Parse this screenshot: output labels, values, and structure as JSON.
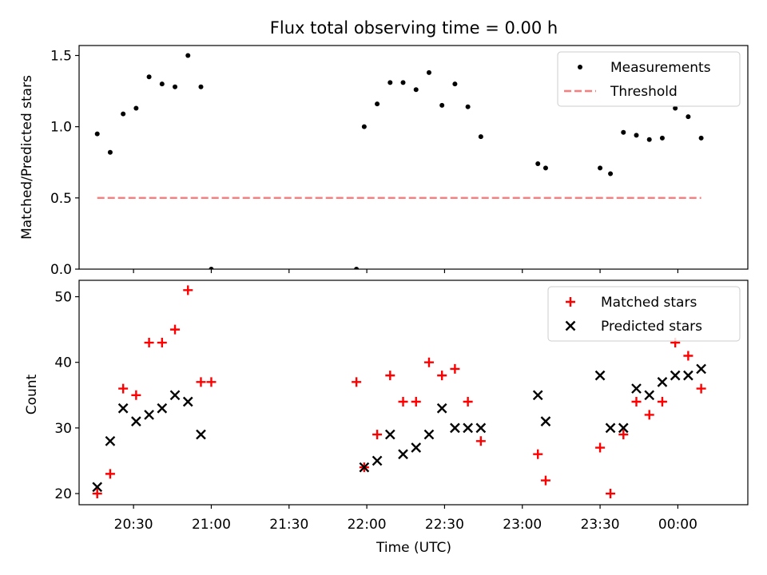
{
  "chart_data": [
    {
      "type": "scatter",
      "title": "Flux total observing time = 0.00 h",
      "ylabel": "Matched/Predicted stars",
      "xlabel": "",
      "xlim": [
        "20:09",
        "00:27"
      ],
      "ylim": [
        0,
        1.57
      ],
      "yticks": [
        "0.0",
        "0.5",
        "1.0",
        "1.5"
      ],
      "legend_position": "top-right",
      "series": [
        {
          "name": "Measurements",
          "marker": "dot",
          "color": "#000000",
          "points": [
            [
              "20:16",
              0.95
            ],
            [
              "20:21",
              0.82
            ],
            [
              "20:26",
              1.09
            ],
            [
              "20:31",
              1.13
            ],
            [
              "20:36",
              1.35
            ],
            [
              "20:41",
              1.3
            ],
            [
              "20:46",
              1.28
            ],
            [
              "20:51",
              1.5
            ],
            [
              "20:56",
              1.28
            ],
            [
              "21:00",
              0.0
            ],
            [
              "21:56",
              0.0
            ],
            [
              "21:59",
              1.0
            ],
            [
              "22:04",
              1.16
            ],
            [
              "22:09",
              1.31
            ],
            [
              "22:14",
              1.31
            ],
            [
              "22:19",
              1.26
            ],
            [
              "22:24",
              1.38
            ],
            [
              "22:29",
              1.15
            ],
            [
              "22:34",
              1.3
            ],
            [
              "22:39",
              1.14
            ],
            [
              "22:44",
              0.93
            ],
            [
              "23:06",
              0.74
            ],
            [
              "23:09",
              0.71
            ],
            [
              "23:30",
              0.71
            ],
            [
              "23:34",
              0.67
            ],
            [
              "23:39",
              0.96
            ],
            [
              "23:44",
              0.94
            ],
            [
              "23:49",
              0.91
            ],
            [
              "23:54",
              0.92
            ],
            [
              "23:59",
              1.13
            ],
            [
              "00:04",
              1.07
            ],
            [
              "00:09",
              0.92
            ]
          ]
        },
        {
          "name": "Threshold",
          "line": "dashed",
          "color": "#ff7b7b",
          "points": [
            [
              "20:16",
              0.5
            ],
            [
              "00:09",
              0.5
            ]
          ]
        }
      ]
    },
    {
      "type": "scatter",
      "ylabel": "Count",
      "xlabel": "Time (UTC)",
      "xlim": [
        "20:09",
        "00:27"
      ],
      "ylim": [
        18.3,
        52.5
      ],
      "yticks": [
        "20",
        "30",
        "40",
        "50"
      ],
      "xticks": [
        "20:30",
        "21:00",
        "21:30",
        "22:00",
        "22:30",
        "23:00",
        "23:30",
        "00:00"
      ],
      "legend_position": "top-right",
      "series": [
        {
          "name": "Matched stars",
          "marker": "plus",
          "color": "#ff0000",
          "points": [
            [
              "20:16",
              20
            ],
            [
              "20:21",
              23
            ],
            [
              "20:26",
              36
            ],
            [
              "20:31",
              35
            ],
            [
              "20:36",
              43
            ],
            [
              "20:41",
              43
            ],
            [
              "20:46",
              45
            ],
            [
              "20:51",
              51
            ],
            [
              "20:56",
              37
            ],
            [
              "21:00",
              37
            ],
            [
              "21:56",
              37
            ],
            [
              "21:59",
              24
            ],
            [
              "22:04",
              29
            ],
            [
              "22:09",
              38
            ],
            [
              "22:14",
              34
            ],
            [
              "22:19",
              34
            ],
            [
              "22:24",
              40
            ],
            [
              "22:29",
              38
            ],
            [
              "22:34",
              39
            ],
            [
              "22:39",
              34
            ],
            [
              "22:44",
              28
            ],
            [
              "23:06",
              26
            ],
            [
              "23:09",
              22
            ],
            [
              "23:30",
              27
            ],
            [
              "23:34",
              20
            ],
            [
              "23:39",
              29
            ],
            [
              "23:44",
              34
            ],
            [
              "23:49",
              32
            ],
            [
              "23:54",
              34
            ],
            [
              "23:59",
              43
            ],
            [
              "00:04",
              41
            ],
            [
              "00:09",
              36
            ]
          ]
        },
        {
          "name": "Predicted stars",
          "marker": "x",
          "color": "#000000",
          "points": [
            [
              "20:16",
              21
            ],
            [
              "20:21",
              28
            ],
            [
              "20:26",
              33
            ],
            [
              "20:31",
              31
            ],
            [
              "20:36",
              32
            ],
            [
              "20:41",
              33
            ],
            [
              "20:46",
              35
            ],
            [
              "20:51",
              34
            ],
            [
              "20:56",
              29
            ],
            [
              "21:59",
              24
            ],
            [
              "22:04",
              25
            ],
            [
              "22:09",
              29
            ],
            [
              "22:14",
              26
            ],
            [
              "22:19",
              27
            ],
            [
              "22:24",
              29
            ],
            [
              "22:29",
              33
            ],
            [
              "22:34",
              30
            ],
            [
              "22:39",
              30
            ],
            [
              "22:44",
              30
            ],
            [
              "23:06",
              35
            ],
            [
              "23:09",
              31
            ],
            [
              "23:30",
              38
            ],
            [
              "23:34",
              30
            ],
            [
              "23:39",
              30
            ],
            [
              "23:44",
              36
            ],
            [
              "23:49",
              35
            ],
            [
              "23:54",
              37
            ],
            [
              "23:59",
              38
            ],
            [
              "00:04",
              38
            ],
            [
              "00:09",
              39
            ]
          ]
        }
      ]
    }
  ]
}
